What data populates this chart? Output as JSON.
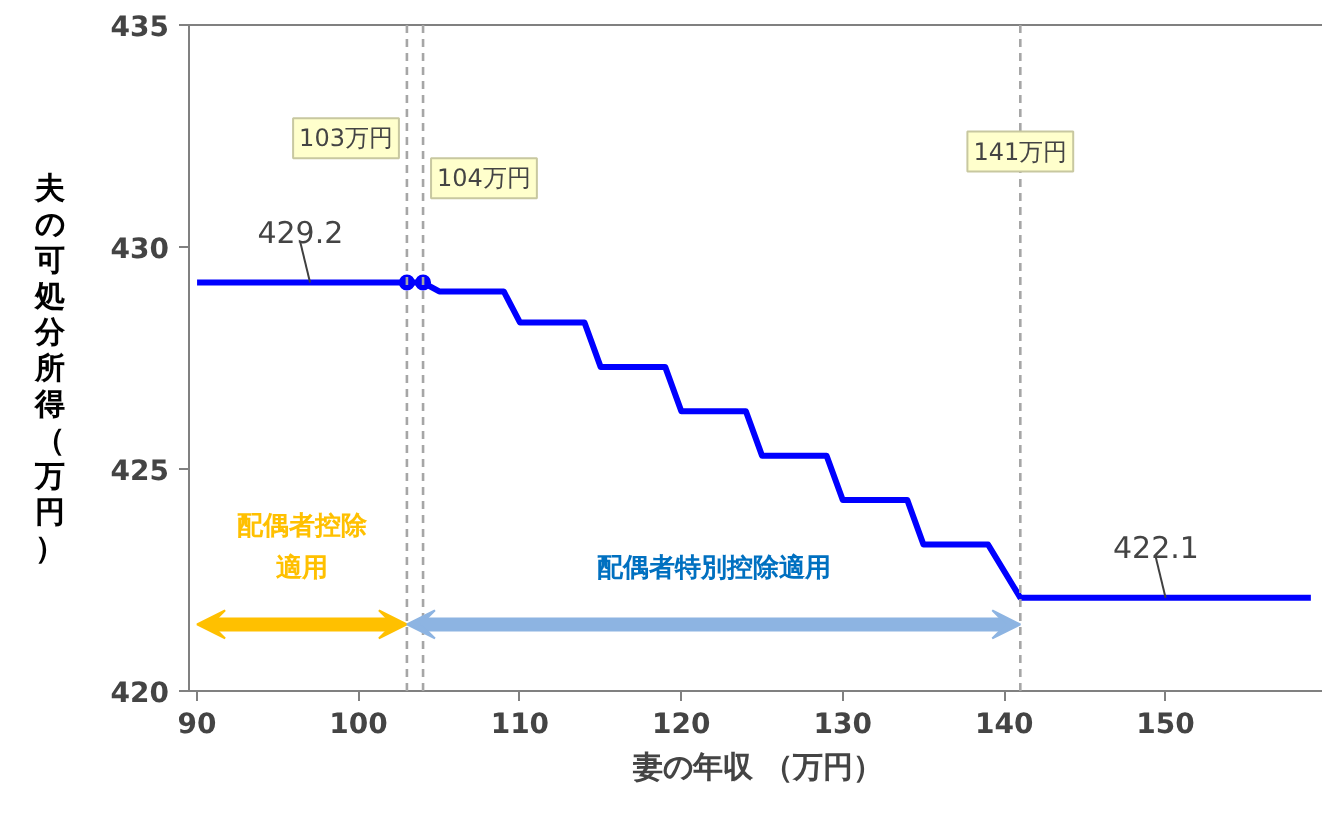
{
  "chart_data": {
    "type": "line",
    "xlabel": "妻の年収 （万円）",
    "ylabel": "夫の可処分所得（万円）",
    "xlim": [
      89.5,
      160
    ],
    "ylim": [
      420,
      435
    ],
    "xticks": [
      90,
      100,
      110,
      120,
      130,
      140,
      150
    ],
    "yticks": [
      420,
      425,
      430,
      435
    ],
    "grid": false,
    "legend": false,
    "series": [
      {
        "color": "#0000ff",
        "marker": "none",
        "x": [
          90,
          103,
          104,
          105,
          109,
          110,
          114,
          115,
          119,
          120,
          124,
          125,
          129,
          130,
          134,
          135,
          139,
          141,
          159
        ],
        "values": [
          429.2,
          429.2,
          429.2,
          429.0,
          429.0,
          428.3,
          428.3,
          427.3,
          427.3,
          426.3,
          426.3,
          425.3,
          425.3,
          424.3,
          424.3,
          423.3,
          423.3,
          422.1,
          422.1
        ]
      },
      {
        "type": "scatter",
        "color": "#0000ff",
        "marker": "circle",
        "x": [
          103,
          104
        ],
        "values": [
          429.2,
          429.2
        ]
      }
    ],
    "ref_lines": [
      {
        "axis": "x",
        "value": 103,
        "label": "103万円",
        "color": "#a6a6a6",
        "line_style": "dashed"
      },
      {
        "axis": "x",
        "value": 104,
        "label": "104万円",
        "color": "#a6a6a6",
        "line_style": "dashed"
      },
      {
        "axis": "x",
        "value": 141,
        "label": "141万円",
        "color": "#a6a6a6",
        "line_style": "dashed"
      }
    ],
    "annotations": [
      {
        "text": "429.2",
        "x": 97,
        "y": 429.2
      },
      {
        "text": "422.1",
        "x": 150,
        "y": 422.1
      },
      "配偶者控除適用",
      "配偶者特別控除適用"
    ]
  }
}
